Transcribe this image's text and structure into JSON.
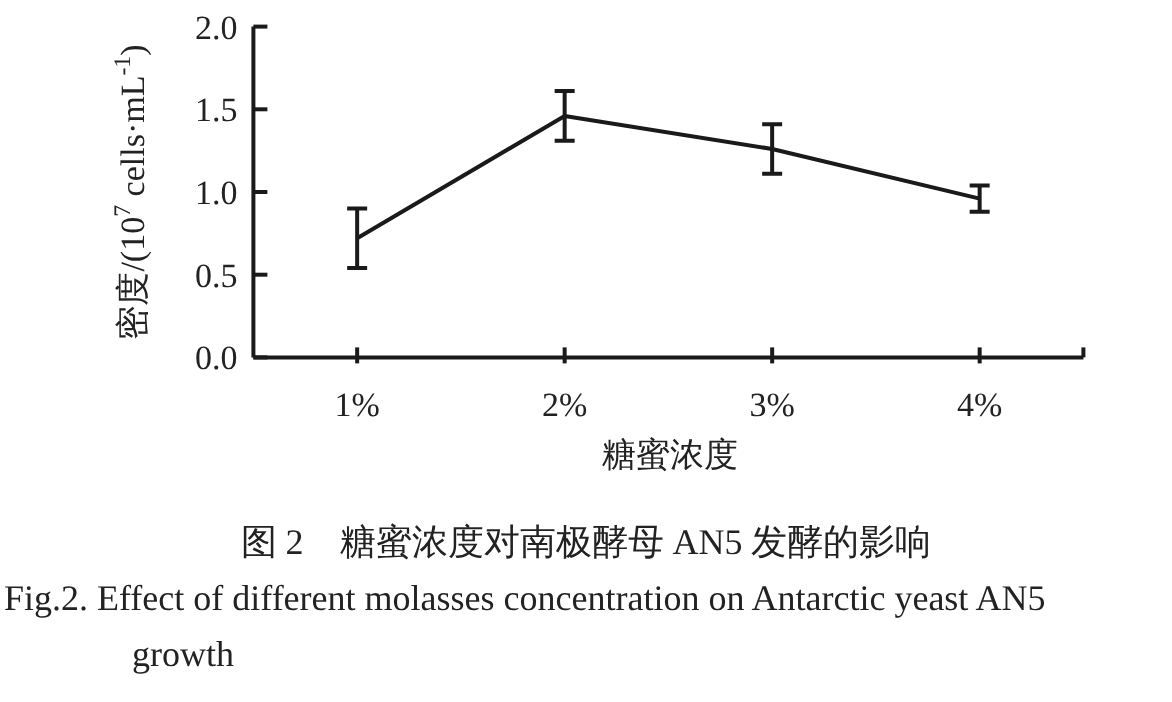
{
  "chart_data": {
    "type": "line",
    "title": "图 2　糖蜜浓度对南极酵母 AN5 发酵的影响",
    "subtitle": "Fig.2. Effect of different molasses concentration on Antarctic yeast AN5 growth",
    "xlabel": "糖蜜浓度",
    "ylabel": "密度/(10$^{7}$ cells·mL$^{-1}$)",
    "categories": [
      "1%",
      "2%",
      "3%",
      "4%"
    ],
    "values": [
      0.72,
      1.46,
      1.26,
      0.96
    ],
    "errors": [
      0.18,
      0.15,
      0.15,
      0.08
    ],
    "color": "#1a1a1a",
    "marker": "none",
    "line_style": "solid",
    "ylim": [
      0,
      2
    ],
    "yticks": [
      {
        "value": 0,
        "label": "0.0"
      },
      0.5,
      {
        "value": 1,
        "label": "1.0"
      },
      1.5,
      {
        "value": 2,
        "label": "2.0"
      }
    ],
    "grid": false
  }
}
